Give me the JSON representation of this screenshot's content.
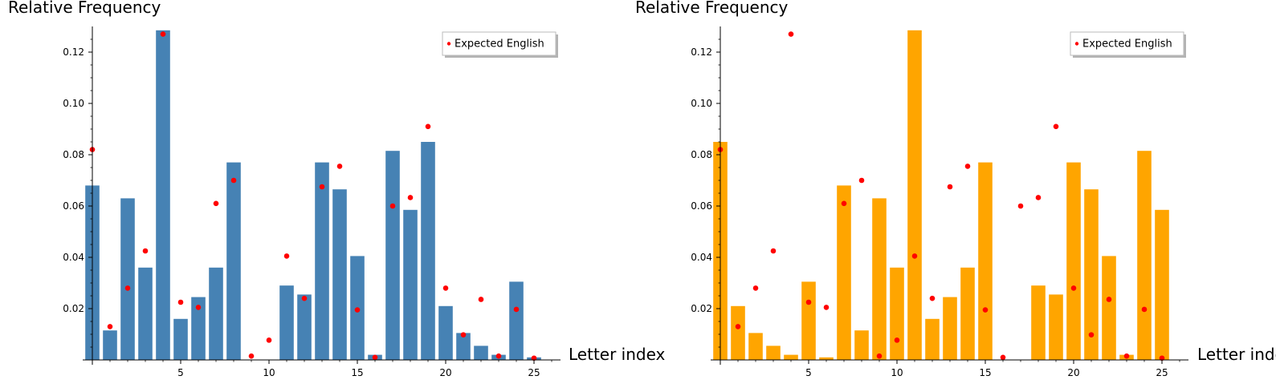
{
  "chart_data": [
    {
      "type": "bar",
      "ylabel": "Relative Frequency",
      "xlabel": "Letter index",
      "xlim": [
        -0.5,
        26
      ],
      "ylim": [
        0,
        0.13
      ],
      "x_ticks": [
        5,
        10,
        15,
        20,
        25
      ],
      "y_ticks": [
        0.02,
        0.04,
        0.06,
        0.08,
        0.1,
        0.12
      ],
      "y_tick_labels": [
        "0.02",
        "0.04",
        "0.06",
        "0.08",
        "0.10",
        "0.12"
      ],
      "legend": {
        "label": "Expected English",
        "position": "top-right"
      },
      "bar_color": "#4682b4",
      "point_color": "#ff0000",
      "series": [
        {
          "values": [
            0.068,
            0.0115,
            0.063,
            0.036,
            0.1285,
            0.016,
            0.0245,
            0.036,
            0.077,
            0.0,
            0.0,
            0.029,
            0.0255,
            0.077,
            0.0665,
            0.0405,
            0.002,
            0.0815,
            0.0585,
            0.085,
            0.021,
            0.0105,
            0.0055,
            0.002,
            0.0305,
            0.001
          ]
        },
        {
          "name": "Expected English",
          "values": [
            0.082,
            0.013,
            0.028,
            0.0425,
            0.127,
            0.0225,
            0.0205,
            0.061,
            0.07,
            0.0015,
            0.0077,
            0.0405,
            0.024,
            0.0675,
            0.0755,
            0.0195,
            0.001,
            0.06,
            0.0633,
            0.091,
            0.028,
            0.0098,
            0.0236,
            0.0015,
            0.0197,
            0.0007
          ]
        }
      ]
    },
    {
      "type": "bar",
      "ylabel": "Relative Frequency",
      "xlabel": "Letter index",
      "xlim": [
        -0.5,
        26
      ],
      "ylim": [
        0,
        0.13
      ],
      "x_ticks": [
        5,
        10,
        15,
        20,
        25
      ],
      "y_ticks": [
        0.02,
        0.04,
        0.06,
        0.08,
        0.1,
        0.12
      ],
      "y_tick_labels": [
        "0.02",
        "0.04",
        "0.06",
        "0.08",
        "0.10",
        "0.12"
      ],
      "legend": {
        "label": "Expected English",
        "position": "top-right"
      },
      "bar_color": "#ffa500",
      "point_color": "#ff0000",
      "series": [
        {
          "values": [
            0.085,
            0.021,
            0.0105,
            0.0055,
            0.002,
            0.0305,
            0.001,
            0.068,
            0.0115,
            0.063,
            0.036,
            0.1285,
            0.016,
            0.0245,
            0.036,
            0.077,
            0.0,
            0.0,
            0.029,
            0.0255,
            0.077,
            0.0665,
            0.0405,
            0.002,
            0.0815,
            0.0585
          ]
        },
        {
          "name": "Expected English",
          "values": [
            0.082,
            0.013,
            0.028,
            0.0425,
            0.127,
            0.0225,
            0.0205,
            0.061,
            0.07,
            0.0015,
            0.0077,
            0.0405,
            0.024,
            0.0675,
            0.0755,
            0.0195,
            0.001,
            0.06,
            0.0633,
            0.091,
            0.028,
            0.0098,
            0.0236,
            0.0015,
            0.0197,
            0.0007
          ]
        }
      ]
    }
  ]
}
